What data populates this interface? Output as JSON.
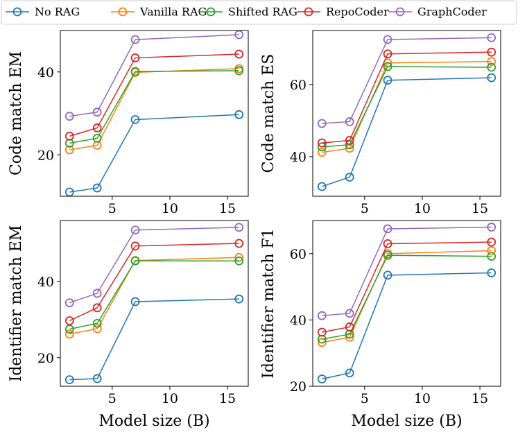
{
  "chart_data": {
    "type": "line",
    "x": [
      1.3,
      3.7,
      7,
      16
    ],
    "legend": {
      "placement": "top",
      "entries": [
        "No RAG",
        "Vanilla RAG",
        "Shifted RAG",
        "RepoCoder",
        "GraphCoder"
      ]
    },
    "colors": {
      "No RAG": "#1f77b4",
      "Vanilla RAG": "#ff7f0e",
      "Shifted RAG": "#2ca02c",
      "RepoCoder": "#d62728",
      "GraphCoder": "#9467bd"
    },
    "panels": [
      {
        "ylabel": "Code match EM",
        "xlabel": "",
        "xlim": [
          0.5,
          16.8
        ],
        "ylim": [
          10,
          50
        ],
        "xticks": [
          5,
          10,
          15
        ],
        "yticks": [
          20,
          40
        ],
        "series": [
          {
            "name": "No RAG",
            "values": [
              11,
              12,
              28.5,
              29.7
            ]
          },
          {
            "name": "Vanilla RAG",
            "values": [
              21.2,
              22.3,
              39.9,
              40.8
            ]
          },
          {
            "name": "Shifted RAG",
            "values": [
              22.8,
              24.0,
              40.1,
              40.3
            ]
          },
          {
            "name": "RepoCoder",
            "values": [
              24.5,
              26.5,
              43.4,
              44.3
            ]
          },
          {
            "name": "GraphCoder",
            "values": [
              29.3,
              30.3,
              47.8,
              49.0
            ]
          }
        ]
      },
      {
        "ylabel": "Code match ES",
        "xlabel": "",
        "xlim": [
          0.5,
          16.8
        ],
        "ylim": [
          29,
          75
        ],
        "xticks": [
          5,
          10,
          15
        ],
        "yticks": [
          40,
          60
        ],
        "series": [
          {
            "name": "No RAG",
            "values": [
              31.7,
              34.3,
              61.2,
              61.9
            ]
          },
          {
            "name": "Vanilla RAG",
            "values": [
              41.2,
              42.3,
              66.0,
              66.4
            ]
          },
          {
            "name": "Shifted RAG",
            "values": [
              42.7,
              43.3,
              65.0,
              64.8
            ]
          },
          {
            "name": "RepoCoder",
            "values": [
              43.8,
              44.5,
              68.5,
              69.0
            ]
          },
          {
            "name": "GraphCoder",
            "values": [
              49.2,
              49.7,
              72.5,
              73.0
            ]
          }
        ]
      },
      {
        "ylabel": "Identifier match EM",
        "xlabel": "Model size (B)",
        "xlim": [
          0.5,
          16.8
        ],
        "ylim": [
          12.5,
          56
        ],
        "xticks": [
          5,
          10,
          15
        ],
        "yticks": [
          20,
          40
        ],
        "series": [
          {
            "name": "No RAG",
            "values": [
              14.2,
              14.5,
              34.7,
              35.4
            ]
          },
          {
            "name": "Vanilla RAG",
            "values": [
              26.2,
              27.6,
              45.5,
              46.3
            ]
          },
          {
            "name": "Shifted RAG",
            "values": [
              27.5,
              29.0,
              45.4,
              45.4
            ]
          },
          {
            "name": "RepoCoder",
            "values": [
              29.7,
              33.1,
              49.3,
              50.0
            ]
          },
          {
            "name": "GraphCoder",
            "values": [
              34.4,
              36.9,
              53.5,
              54.2
            ]
          }
        ]
      },
      {
        "ylabel": "Identifier match F1",
        "xlabel": "Model size (B)",
        "xlim": [
          0.5,
          16.8
        ],
        "ylim": [
          20,
          70
        ],
        "xticks": [
          5,
          10,
          15
        ],
        "yticks": [
          20,
          40,
          60
        ],
        "series": [
          {
            "name": "No RAG",
            "values": [
              22.2,
              24.0,
              53.5,
              54.2
            ]
          },
          {
            "name": "Vanilla RAG",
            "values": [
              33.2,
              34.8,
              60.0,
              60.9
            ]
          },
          {
            "name": "Shifted RAG",
            "values": [
              34.2,
              35.7,
              59.5,
              59.2
            ]
          },
          {
            "name": "RepoCoder",
            "values": [
              36.3,
              37.9,
              63.0,
              63.5
            ]
          },
          {
            "name": "GraphCoder",
            "values": [
              41.3,
              42.0,
              67.5,
              68.0
            ]
          }
        ]
      }
    ]
  }
}
